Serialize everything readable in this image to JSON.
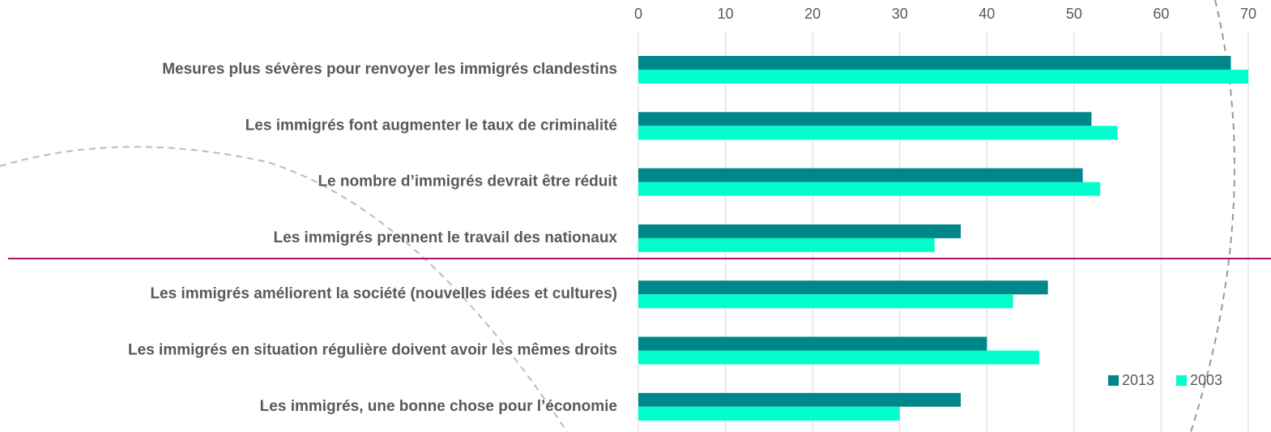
{
  "chart_data": {
    "type": "bar",
    "orientation": "horizontal",
    "categories": [
      "Mesures plus sévères pour renvoyer les immigrés clandestins",
      "Les immigrés font augmenter le taux de criminalité",
      "Le nombre d’immigrés devrait être réduit",
      "Les immigrés prennent le travail des nationaux",
      "Les immigrés améliorent la société (nouvelles idées  et cultures)",
      "Les immigrés en situation régulière doivent avoir les mêmes droits",
      "Les immigrés, une bonne chose pour l’économie"
    ],
    "series": [
      {
        "name": "2013",
        "color": "#00878a",
        "values": [
          68,
          52,
          51,
          37,
          47,
          40,
          37
        ]
      },
      {
        "name": "2003",
        "color": "#00ffcc",
        "values": [
          70,
          55,
          53,
          34,
          43,
          46,
          30
        ]
      }
    ],
    "xlim": [
      0,
      70
    ],
    "xticks": [
      0,
      10,
      20,
      30,
      40,
      50,
      60,
      70
    ],
    "grid": true,
    "legend": "lower right"
  }
}
